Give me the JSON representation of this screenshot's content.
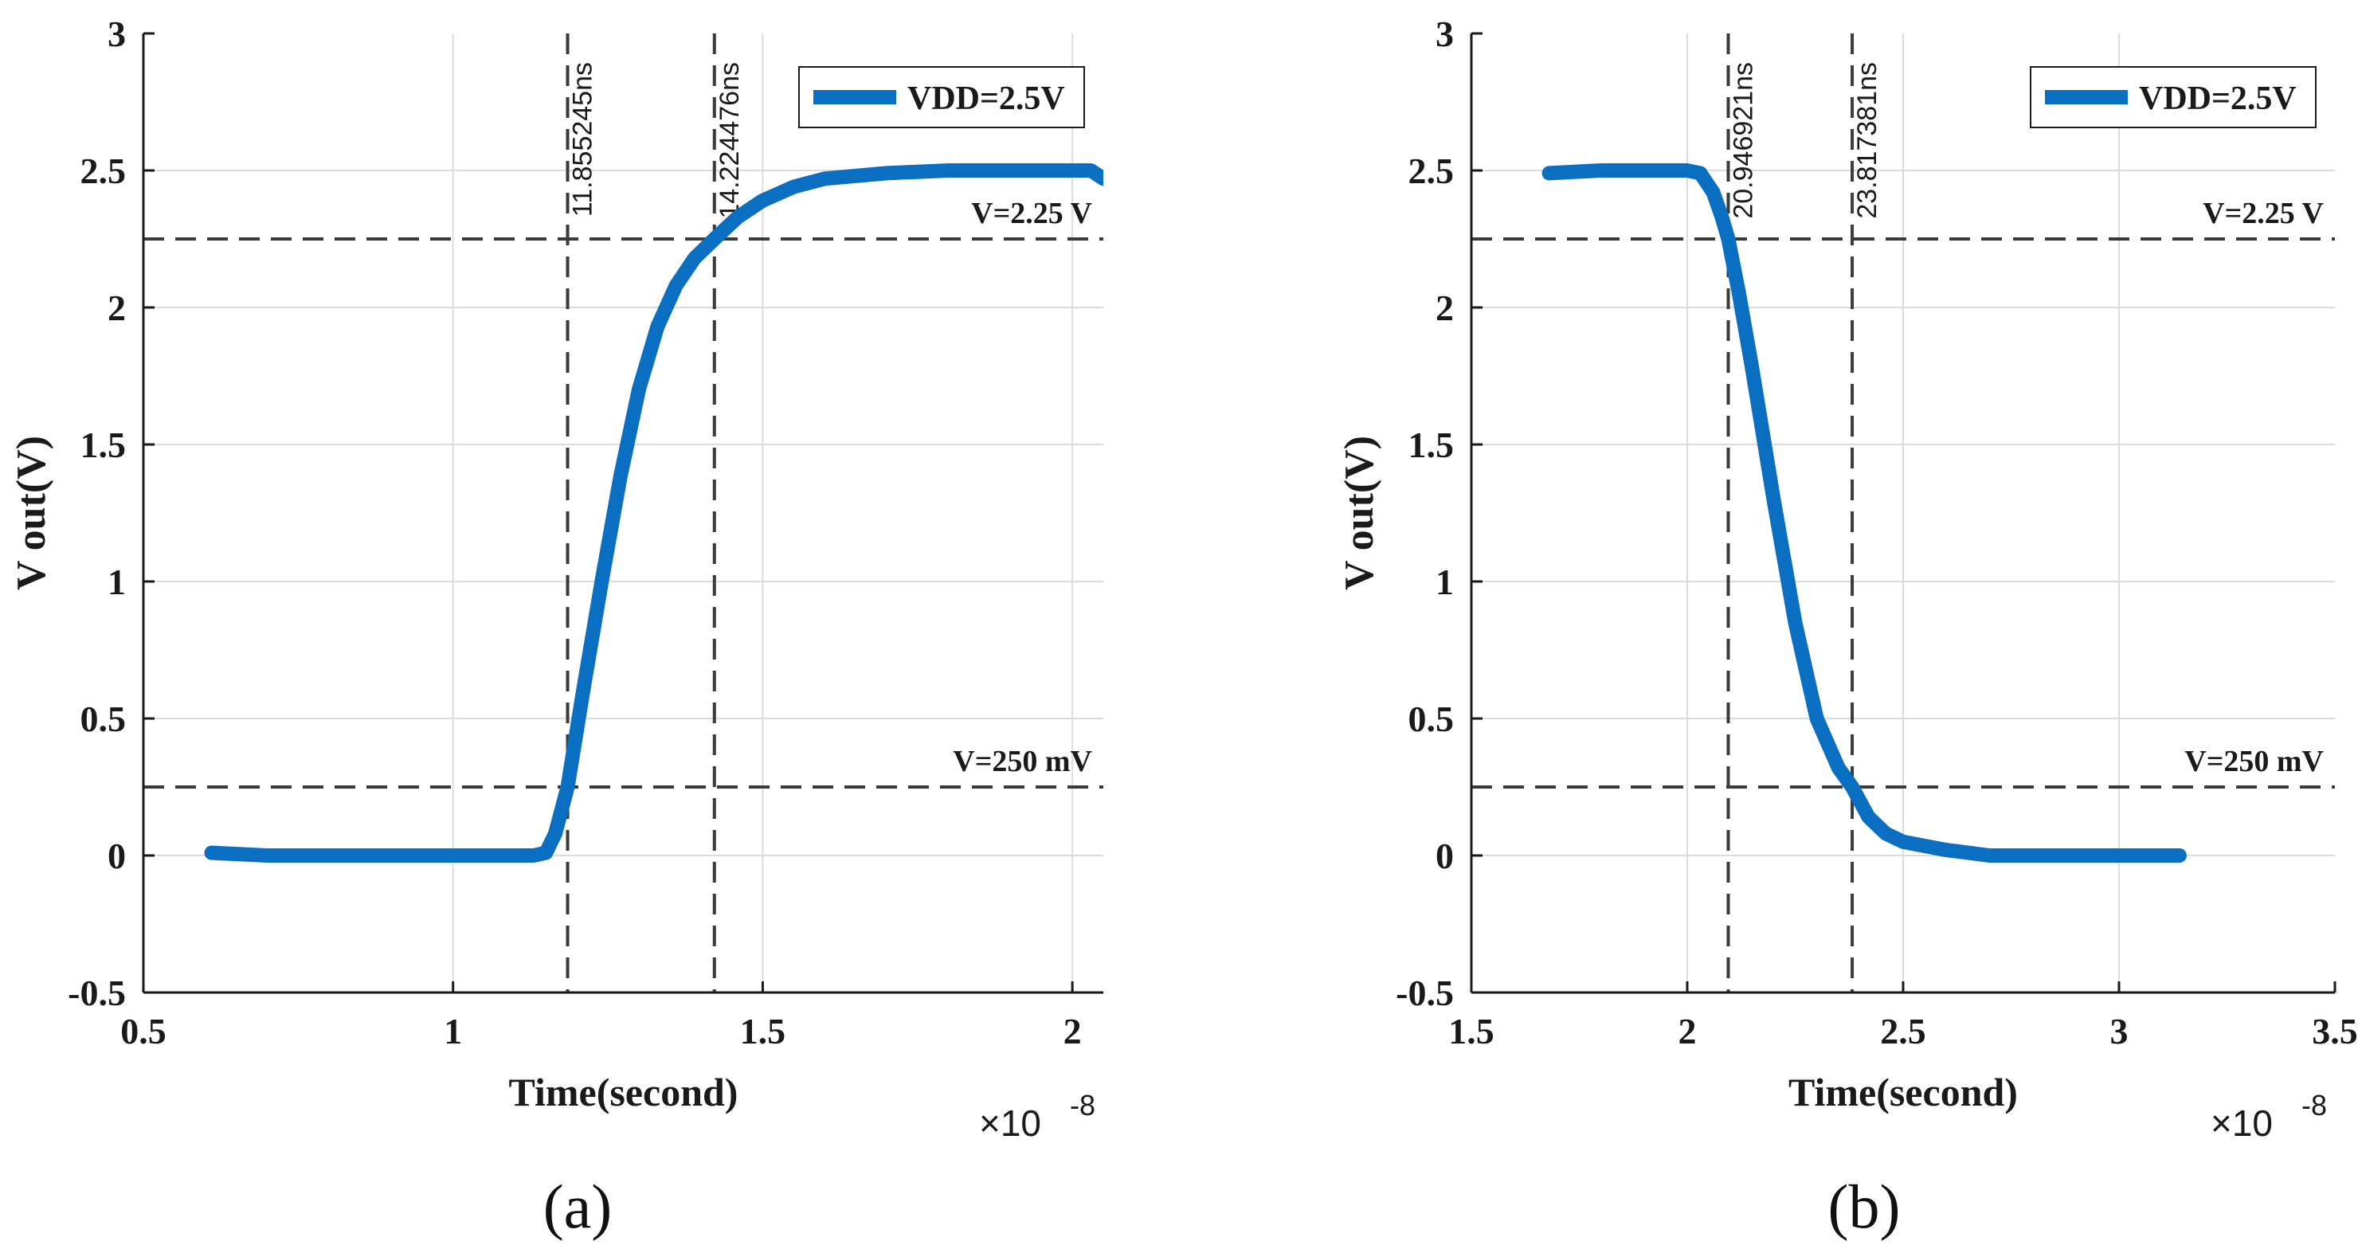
{
  "colors": {
    "series": "#0a6fc0",
    "grid": "#dcdcdc",
    "axis": "#1a1a1a",
    "ref_line": "#3a3a3a",
    "text": "#1a1a1a"
  },
  "chart_data": [
    {
      "type": "line",
      "panel_label": "(a)",
      "xlabel": "Time(second)",
      "ylabel": "V out(V)",
      "x_exponent_base": "×10",
      "x_exponent_power": "-8",
      "xlim": [
        0.5,
        2.05
      ],
      "ylim": [
        -0.5,
        3
      ],
      "xticks": [
        0.5,
        1,
        1.5,
        2
      ],
      "xtick_labels": [
        "0.5",
        "1",
        "1.5",
        "2"
      ],
      "yticks": [
        -0.5,
        0,
        0.5,
        1,
        1.5,
        2,
        2.5,
        3
      ],
      "ytick_labels": [
        "-0.5",
        "0",
        "0.5",
        "1",
        "1.5",
        "2",
        "2.5",
        "3"
      ],
      "grid": true,
      "legend": {
        "position": "top-right",
        "entries": [
          "VDD=2.5V"
        ]
      },
      "hlines": [
        {
          "y": 2.25,
          "label": "V=2.25 V"
        },
        {
          "y": 0.25,
          "label": "V=250 mV"
        }
      ],
      "vlines": [
        {
          "x": 1.185,
          "label": "11.855245ns"
        },
        {
          "x": 1.422,
          "label": "14.224476ns"
        }
      ],
      "series": [
        {
          "name": "VDD=2.5V",
          "x": [
            0.61,
            0.7,
            0.8,
            0.9,
            1.0,
            1.1,
            1.13,
            1.15,
            1.165,
            1.185,
            1.21,
            1.24,
            1.27,
            1.3,
            1.33,
            1.36,
            1.39,
            1.422,
            1.46,
            1.5,
            1.55,
            1.6,
            1.7,
            1.8,
            1.9,
            1.95,
            2.0,
            2.03,
            2.05
          ],
          "y": [
            0.01,
            0.0,
            0.0,
            0.0,
            0.0,
            0.0,
            0.0,
            0.01,
            0.08,
            0.25,
            0.6,
            1.0,
            1.38,
            1.7,
            1.93,
            2.08,
            2.18,
            2.25,
            2.33,
            2.39,
            2.44,
            2.47,
            2.49,
            2.5,
            2.5,
            2.5,
            2.5,
            2.5,
            2.47
          ]
        }
      ]
    },
    {
      "type": "line",
      "panel_label": "(b)",
      "xlabel": "Time(second)",
      "ylabel": "V out(V)",
      "x_exponent_base": "×10",
      "x_exponent_power": "-8",
      "xlim": [
        1.5,
        3.5
      ],
      "ylim": [
        -0.5,
        3
      ],
      "xticks": [
        1.5,
        2,
        2.5,
        3,
        3.5
      ],
      "xtick_labels": [
        "1.5",
        "2",
        "2.5",
        "3",
        "3.5"
      ],
      "yticks": [
        -0.5,
        0,
        0.5,
        1,
        1.5,
        2,
        2.5,
        3
      ],
      "ytick_labels": [
        "-0.5",
        "0",
        "0.5",
        "1",
        "1.5",
        "2",
        "2.5",
        "3"
      ],
      "grid": true,
      "legend": {
        "position": "top-right",
        "entries": [
          "VDD=2.5V"
        ]
      },
      "hlines": [
        {
          "y": 2.25,
          "label": "V=2.25 V"
        },
        {
          "y": 0.25,
          "label": "V=250 mV"
        }
      ],
      "vlines": [
        {
          "x": 2.095,
          "label": "20.946921ns"
        },
        {
          "x": 2.382,
          "label": "23.817381ns"
        }
      ],
      "series": [
        {
          "name": "VDD=2.5V",
          "x": [
            1.68,
            1.8,
            1.9,
            2.0,
            2.03,
            2.06,
            2.08,
            2.095,
            2.12,
            2.15,
            2.2,
            2.25,
            2.3,
            2.35,
            2.382,
            2.42,
            2.46,
            2.5,
            2.6,
            2.7,
            2.8,
            3.0,
            3.1,
            3.14
          ],
          "y": [
            2.49,
            2.5,
            2.5,
            2.5,
            2.49,
            2.42,
            2.33,
            2.25,
            2.05,
            1.78,
            1.3,
            0.85,
            0.5,
            0.32,
            0.25,
            0.14,
            0.08,
            0.05,
            0.02,
            0.0,
            0.0,
            0.0,
            0.0,
            0.0
          ]
        }
      ]
    }
  ]
}
